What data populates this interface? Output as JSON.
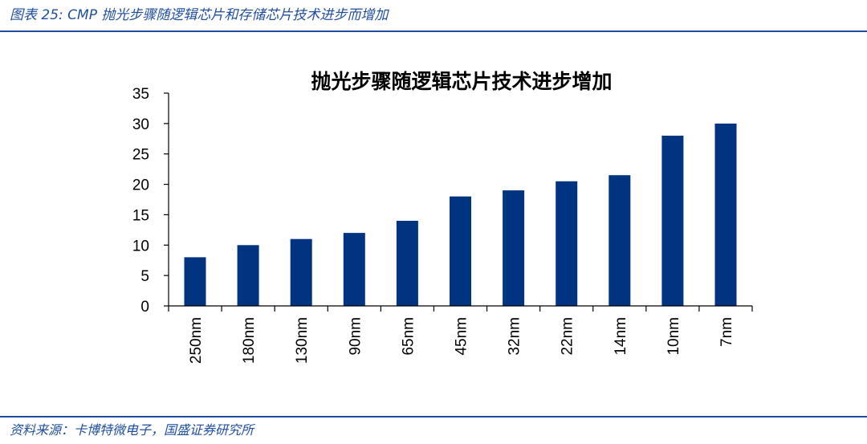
{
  "figure": {
    "caption": "图表 25:  CMP 抛光步骤随逻辑芯片和存储芯片技术进步而增加",
    "source": "资料来源：卡博特微电子，国盛证券研究所"
  },
  "colors": {
    "bar": "#003380",
    "accent": "#1f4e9e",
    "axis": "#000000"
  },
  "chart_data": {
    "type": "bar",
    "title": "抛光步骤随逻辑芯片技术进步增加",
    "xlabel": "",
    "ylabel": "",
    "categories": [
      "250nm",
      "180nm",
      "130nm",
      "90nm",
      "65nm",
      "45nm",
      "32nm",
      "22nm",
      "14nm",
      "10nm",
      "7nm"
    ],
    "values": [
      8,
      10,
      11,
      12,
      14,
      18,
      19,
      20.5,
      21.5,
      28,
      30
    ],
    "ylim": [
      0,
      35
    ],
    "yticks": [
      0,
      5,
      10,
      15,
      20,
      25,
      30,
      35
    ],
    "grid": false,
    "legend": "none"
  }
}
